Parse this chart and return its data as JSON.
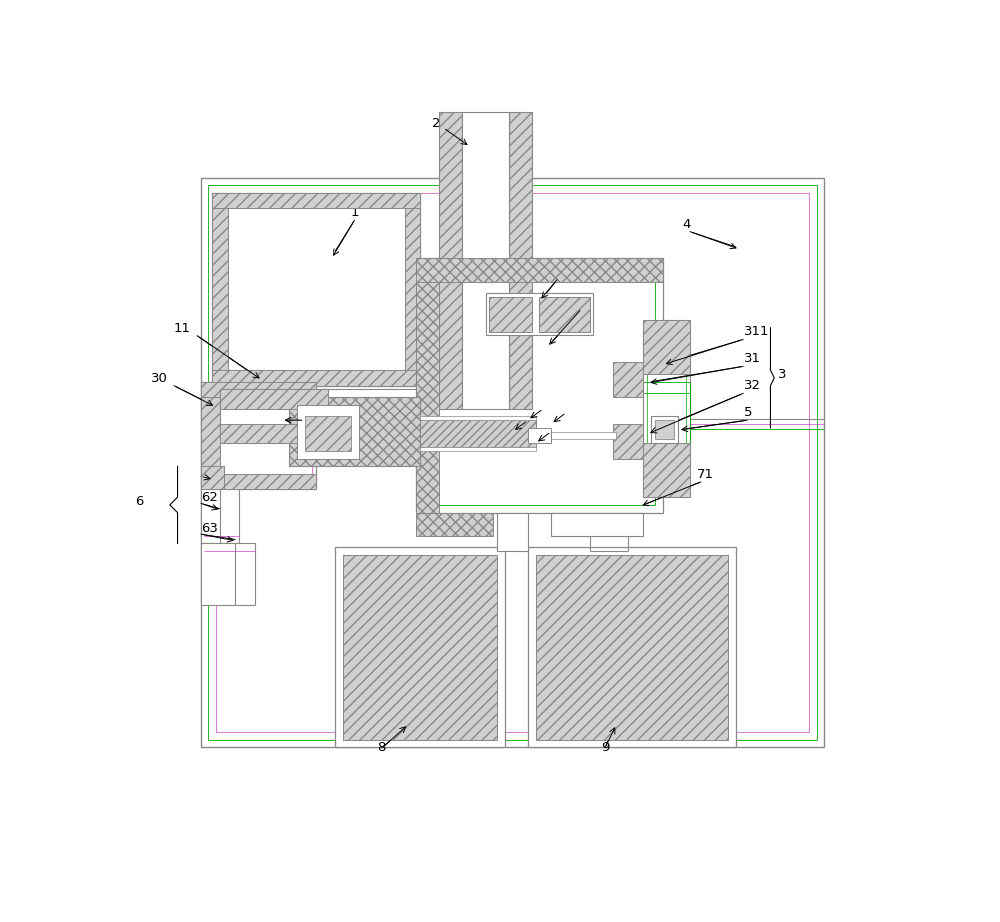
{
  "bg_color": "#ffffff",
  "line_color": "#808080",
  "text_color": "#000000",
  "fig_width": 10.0,
  "fig_height": 9.22,
  "dpi": 100,
  "green_color": "#00aa00",
  "purple_color": "#cc44cc"
}
